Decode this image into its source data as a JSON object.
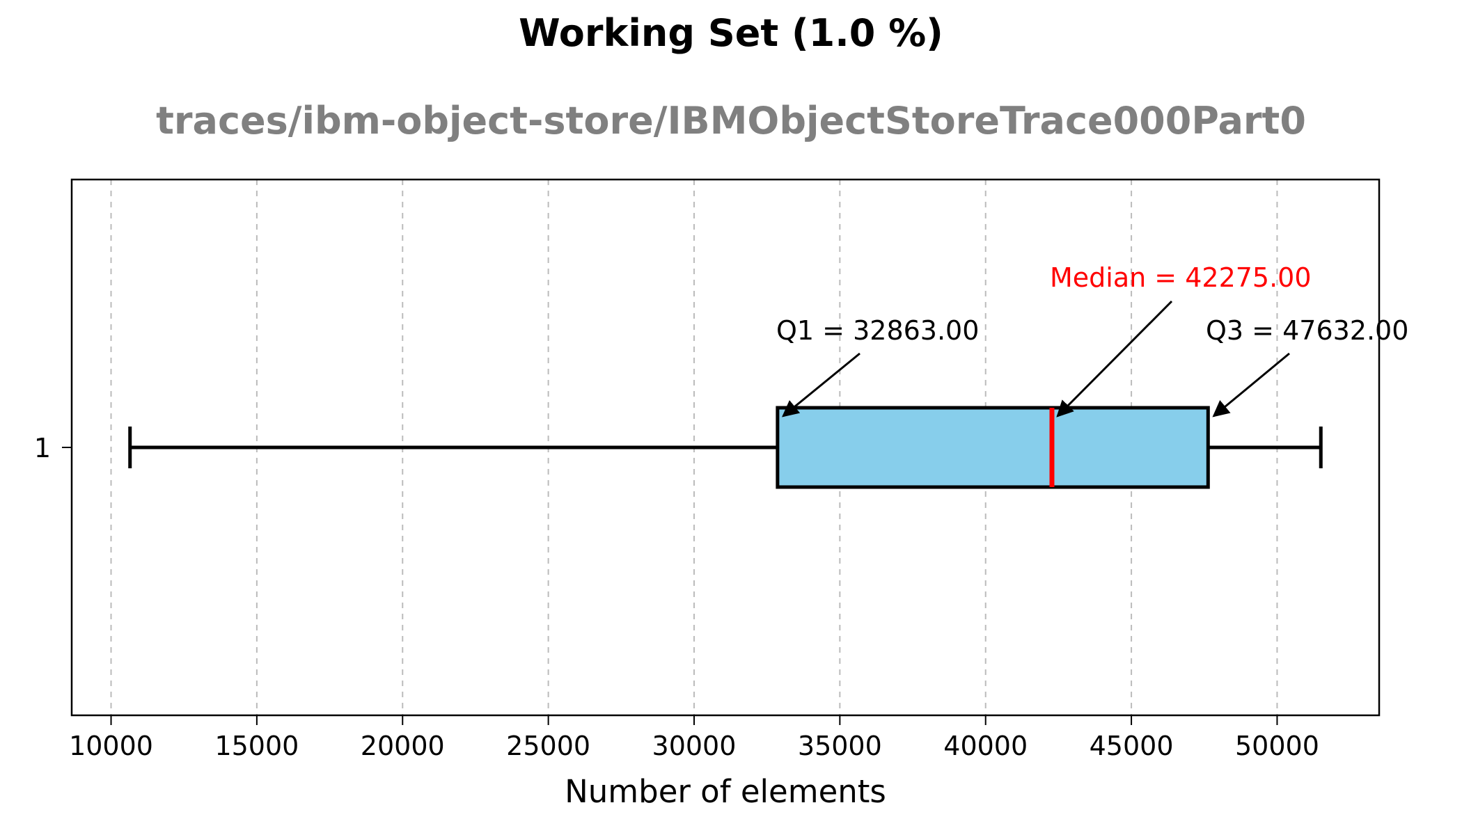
{
  "chart_data": {
    "type": "boxplot",
    "title": "Working Set (1.0 %)",
    "subtitle": "traces/ibm-object-store/IBMObjectStoreTrace000Part0",
    "xlabel": "Number of elements",
    "ylabel": "",
    "orientation": "horizontal",
    "xlim": [
      8650,
      53500
    ],
    "xticks": [
      10000,
      15000,
      20000,
      25000,
      30000,
      35000,
      40000,
      45000,
      50000
    ],
    "xtick_labels": [
      "10000",
      "15000",
      "20000",
      "25000",
      "30000",
      "35000",
      "40000",
      "45000",
      "50000"
    ],
    "yticks": [
      1
    ],
    "ytick_labels": [
      "1"
    ],
    "grid": {
      "x": true,
      "y": false,
      "style": "dashed"
    },
    "box": {
      "category": "1",
      "whisker_low": 10650,
      "q1": 32863.0,
      "median": 42275.0,
      "q3": 47632.0,
      "whisker_high": 51500
    },
    "colors": {
      "box_fill": "#87ceeb",
      "box_edge": "#000000",
      "median_line": "#ff0000",
      "grid": "#bbbbbb",
      "subtitle": "#808080",
      "median_annotation": "#ff0000"
    },
    "annotations": {
      "q1": "Q1 = 32863.00",
      "median": "Median = 42275.00",
      "q3": "Q3 = 47632.00"
    }
  }
}
